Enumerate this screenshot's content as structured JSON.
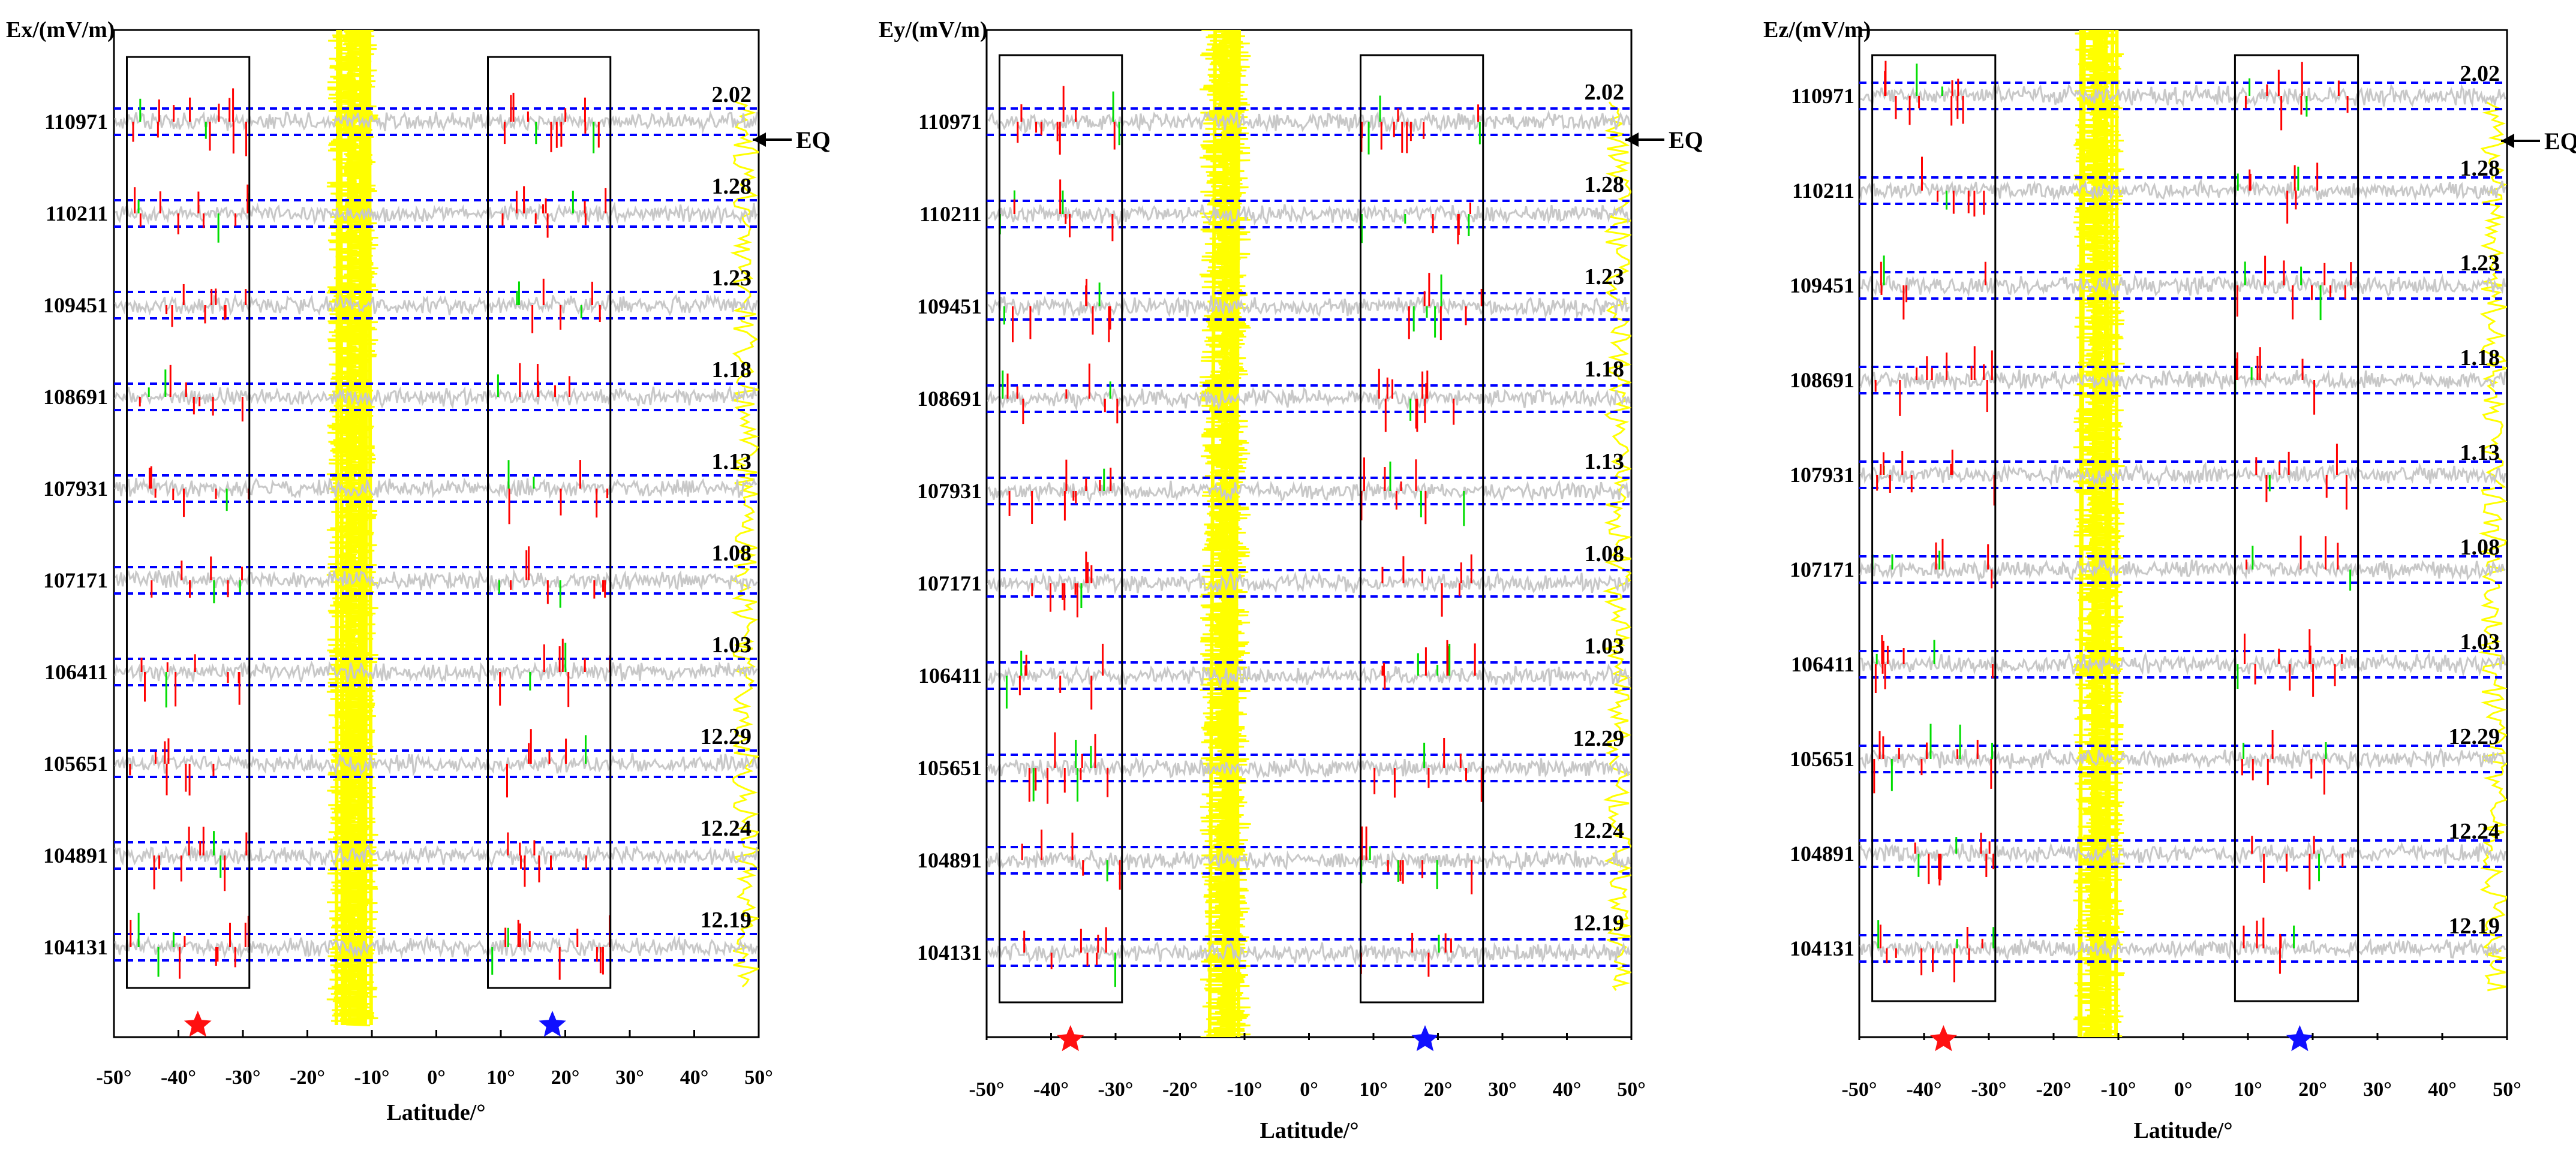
{
  "chart_data": [
    {
      "type": "line",
      "panel_id": "ex",
      "ylabel": "Ex/(mV/m)",
      "xlabel": "Latitude/°",
      "xlim": [
        -50,
        50
      ],
      "x_ticks": [
        "-50°",
        "-40°",
        "-30°",
        "-20°",
        "-10°",
        "0°",
        "10°",
        "20°",
        "30°",
        "40°",
        "50°"
      ],
      "orbits": [
        "110971",
        "110211",
        "109451",
        "108691",
        "107931",
        "107171",
        "106411",
        "105651",
        "104891",
        "104131"
      ],
      "dates": [
        "2.02",
        "1.28",
        "1.23",
        "1.18",
        "1.13",
        "1.08",
        "1.03",
        "12.29",
        "12.24",
        "12.19"
      ],
      "anomaly_boxes": [
        [
          -48,
          -29
        ],
        [
          8,
          27
        ]
      ],
      "yellow_band_lat": [
        [
          -17,
          -9
        ]
      ],
      "epicenter_marker": {
        "label": "EQ",
        "orbit": "110971"
      },
      "star_red_lat": -37,
      "star_blue_lat": 18
    },
    {
      "type": "line",
      "panel_id": "ey",
      "ylabel": "Ey/(mV/m)",
      "xlabel": "Latitude/°",
      "xlim": [
        -50,
        50
      ],
      "x_ticks": [
        "-50°",
        "-40°",
        "-30°",
        "-20°",
        "-10°",
        "0°",
        "10°",
        "20°",
        "30°",
        "40°",
        "50°"
      ],
      "orbits": [
        "110971",
        "110211",
        "109451",
        "108691",
        "107931",
        "107171",
        "106411",
        "105651",
        "104891",
        "104131"
      ],
      "dates": [
        "2.02",
        "1.28",
        "1.23",
        "1.18",
        "1.13",
        "1.08",
        "1.03",
        "12.29",
        "12.24",
        "12.19"
      ],
      "anomaly_boxes": [
        [
          -48,
          -29
        ],
        [
          8,
          27
        ]
      ],
      "yellow_band_lat": [
        [
          -17,
          -9
        ]
      ],
      "epicenter_marker": {
        "label": "EQ",
        "orbit": "110971"
      },
      "star_red_lat": -37,
      "star_blue_lat": 18
    },
    {
      "type": "line",
      "panel_id": "ez",
      "ylabel": "Ez/(mV/m)",
      "xlabel": "Latitude/°",
      "xlim": [
        -50,
        50
      ],
      "x_ticks": [
        "-50°",
        "-40°",
        "-30°",
        "-20°",
        "-10°",
        "0°",
        "10°",
        "20°",
        "30°",
        "40°",
        "50°"
      ],
      "orbits": [
        "110971",
        "110211",
        "109451",
        "108691",
        "107931",
        "107171",
        "106411",
        "105651",
        "104891",
        "104131"
      ],
      "dates": [
        "2.02",
        "1.28",
        "1.23",
        "1.18",
        "1.13",
        "1.08",
        "1.03",
        "12.29",
        "12.24",
        "12.19"
      ],
      "anomaly_boxes": [
        [
          -48,
          -29
        ],
        [
          8,
          27
        ]
      ],
      "yellow_band_lat": [
        [
          -17,
          -9
        ]
      ],
      "epicenter_marker": {
        "label": "EQ",
        "orbit": "110971"
      },
      "star_red_lat": -37,
      "star_blue_lat": 18
    }
  ],
  "colors": {
    "trace": "#c8c8c8",
    "anomaly_red": "#ff0000",
    "anomaly_green": "#00dd00",
    "yellow": "#ffff00",
    "dash": "#0000ff",
    "box": "#000000",
    "star_red": "#ff1010",
    "star_blue": "#1010ff"
  }
}
